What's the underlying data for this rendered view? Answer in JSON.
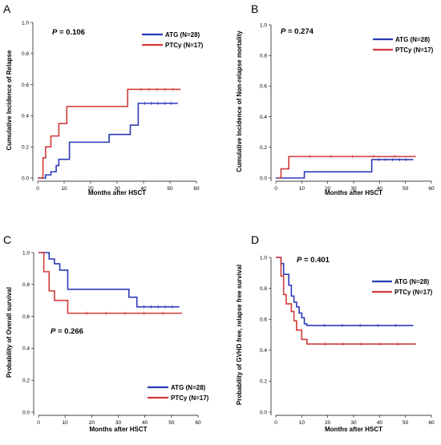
{
  "figure": {
    "panels": [
      "A",
      "B",
      "C",
      "D"
    ]
  },
  "chart_data": [
    {
      "panel": "A",
      "type": "line",
      "step": true,
      "p_label": "P",
      "p_value": "= 0.106",
      "xlabel": "Months after HSCT",
      "ylabel": "Cumulative Incidence of Relapse",
      "xlim": [
        0,
        60
      ],
      "ylim": [
        0,
        1.0
      ],
      "xticks": [
        "0",
        "10",
        "20",
        "30",
        "40",
        "50",
        "60"
      ],
      "yticks": [
        "0.0",
        "0.2",
        "0.4",
        "0.6",
        "0.8",
        "1.0"
      ],
      "legend_position": "top-right",
      "series": [
        {
          "name": "ATG (N=28)",
          "color": "#2b3bb6",
          "x": [
            0,
            3,
            5,
            7,
            8,
            12,
            27,
            35,
            38,
            53
          ],
          "y": [
            0,
            0.02,
            0.04,
            0.08,
            0.12,
            0.23,
            0.28,
            0.34,
            0.48,
            0.48
          ]
        },
        {
          "name": "PTCy (N=17)",
          "color": "#d43a3a",
          "x": [
            0,
            2,
            3,
            5,
            8,
            11,
            13,
            34,
            36,
            54
          ],
          "y": [
            0,
            0.13,
            0.2,
            0.27,
            0.35,
            0.46,
            0.46,
            0.57,
            0.57,
            0.57
          ]
        }
      ]
    },
    {
      "panel": "B",
      "type": "line",
      "step": true,
      "p_label": "P",
      "p_value": "= 0.274",
      "xlabel": "Months after HSCT",
      "ylabel": "Cumulative Incidence of Non-relapse mortality",
      "xlim": [
        0,
        60
      ],
      "ylim": [
        0,
        1.0
      ],
      "xticks": [
        "0",
        "10",
        "20",
        "30",
        "40",
        "50",
        "60"
      ],
      "yticks": [
        "0.0",
        "0.2",
        "0.4",
        "0.6",
        "0.8",
        "1.0"
      ],
      "legend_position": "top-right",
      "series": [
        {
          "name": "ATG (N=28)",
          "color": "#2b3bb6",
          "x": [
            0,
            11,
            37,
            53
          ],
          "y": [
            0,
            0.04,
            0.12,
            0.12
          ]
        },
        {
          "name": "PTCy (N=17)",
          "color": "#d43a3a",
          "x": [
            1,
            2,
            5,
            54
          ],
          "y": [
            0,
            0.06,
            0.14,
            0.14
          ]
        }
      ]
    },
    {
      "panel": "C",
      "type": "line",
      "step": true,
      "p_label": "P",
      "p_value": "= 0.266",
      "xlabel": "Months after HSCT",
      "ylabel": "Probability of Overall survival",
      "xlim": [
        0,
        60
      ],
      "ylim": [
        0,
        1.0
      ],
      "xticks": [
        "0",
        "10",
        "20",
        "30",
        "40",
        "50",
        "60"
      ],
      "yticks": [
        "0.0",
        "0.2",
        "0.4",
        "0.6",
        "0.8",
        "1.0"
      ],
      "legend_position": "bottom-right",
      "series": [
        {
          "name": "ATG (N=28)",
          "color": "#2b3bb6",
          "x": [
            0,
            4,
            6,
            8,
            11,
            34,
            37,
            53
          ],
          "y": [
            1,
            0.96,
            0.93,
            0.89,
            0.77,
            0.72,
            0.66,
            0.66
          ]
        },
        {
          "name": "PTCy (N=17)",
          "color": "#d43a3a",
          "x": [
            0,
            2,
            4,
            6,
            11,
            54
          ],
          "y": [
            1,
            0.88,
            0.76,
            0.7,
            0.62,
            0.62
          ]
        }
      ]
    },
    {
      "panel": "D",
      "type": "line",
      "step": true,
      "p_label": "P",
      "p_value": "= 0.401",
      "xlabel": "Months after HSCT",
      "ylabel": "Probability of GVHD free, relapse free survival",
      "xlim": [
        0,
        60
      ],
      "ylim": [
        0,
        1.0
      ],
      "xticks": [
        "0",
        "10",
        "20",
        "30",
        "40",
        "50",
        "60"
      ],
      "yticks": [
        "0.0",
        "0.2",
        "0.4",
        "0.6",
        "0.8",
        "1.0"
      ],
      "legend_position": "top-right",
      "series": [
        {
          "name": "ATG (N=28)",
          "color": "#2b3bb6",
          "x": [
            0,
            2,
            3,
            5,
            6,
            7,
            8,
            9,
            10,
            11,
            12,
            53
          ],
          "y": [
            1,
            0.96,
            0.89,
            0.82,
            0.75,
            0.71,
            0.68,
            0.64,
            0.61,
            0.57,
            0.56,
            0.56
          ]
        },
        {
          "name": "PTCy (N=17)",
          "color": "#d43a3a",
          "x": [
            0,
            2,
            3,
            4,
            6,
            7,
            8,
            10,
            12,
            54
          ],
          "y": [
            1,
            0.88,
            0.76,
            0.7,
            0.65,
            0.59,
            0.53,
            0.47,
            0.44,
            0.44
          ]
        }
      ]
    }
  ]
}
